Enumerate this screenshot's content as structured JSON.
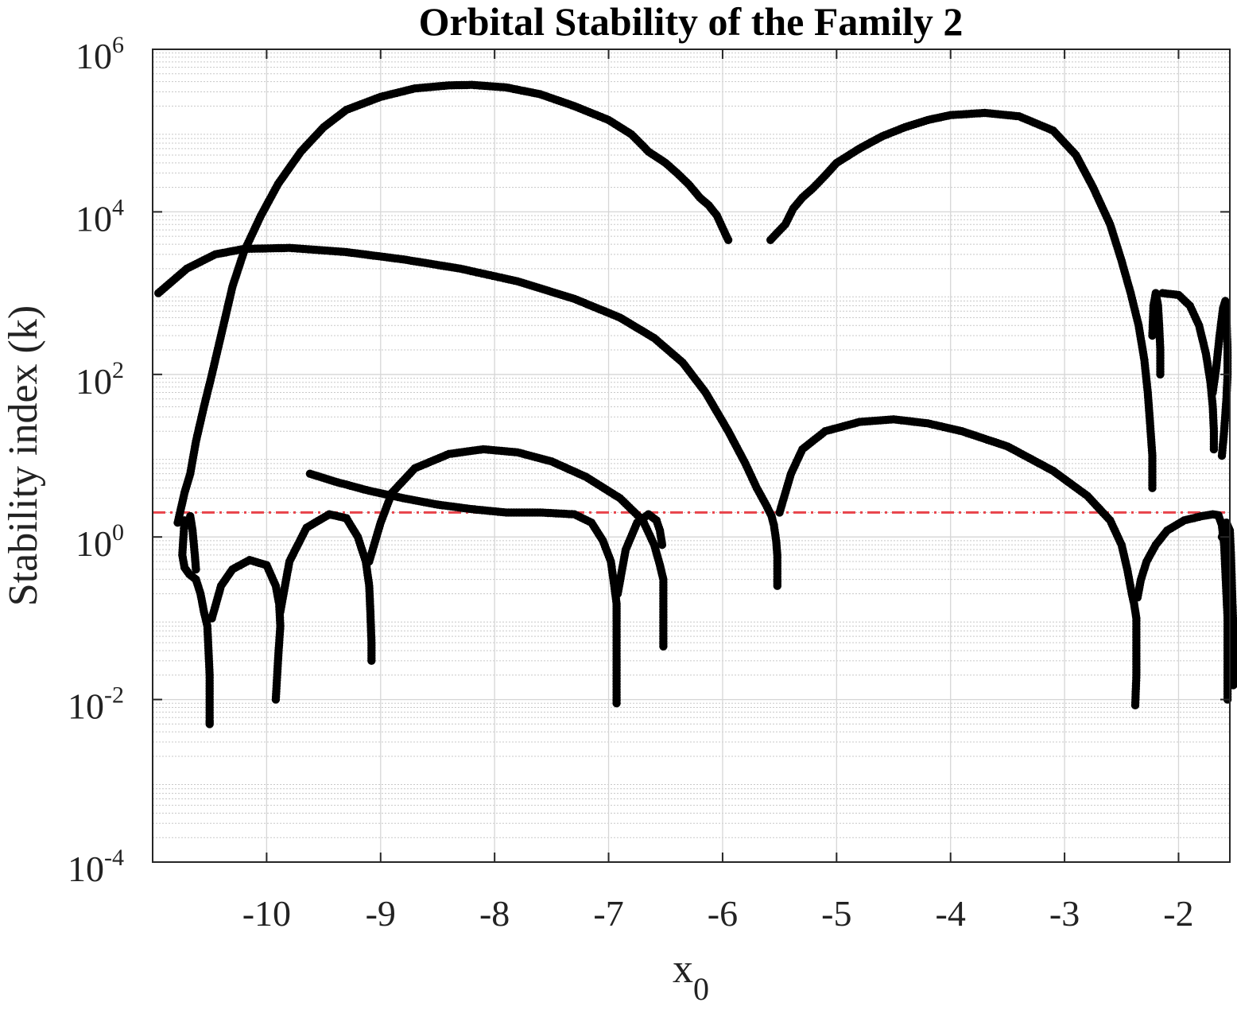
{
  "chart_data": {
    "type": "scatter",
    "title": "Orbital Stability of the Family 2",
    "xlabel": {
      "main": "x",
      "sub": "0"
    },
    "ylabel": "Stability index (k)",
    "xlim": [
      -11.0,
      -1.55
    ],
    "ylim": [
      0.0001,
      1000000
    ],
    "yscale": "log",
    "xticks": [
      -10,
      -9,
      -8,
      -7,
      -6,
      -5,
      -4,
      -3,
      -2
    ],
    "yticks": [
      {
        "value": 0.0001,
        "base": "10",
        "exp": "-4"
      },
      {
        "value": 0.01,
        "base": "10",
        "exp": "-2"
      },
      {
        "value": 1,
        "base": "10",
        "exp": "0"
      },
      {
        "value": 100,
        "base": "10",
        "exp": "2"
      },
      {
        "value": 10000,
        "base": "10",
        "exp": "4"
      },
      {
        "value": 1000000,
        "base": "10",
        "exp": "6"
      }
    ],
    "grid": true,
    "minor_grid": true,
    "marker_color": "#000000",
    "reference_line": {
      "y": 2,
      "color": "#e8434a",
      "style": "dash-dot"
    },
    "series": [
      {
        "points": [
          [
            -10.95,
            1000
          ],
          [
            -10.7,
            2000
          ],
          [
            -10.45,
            3000
          ],
          [
            -10.2,
            3500
          ],
          [
            -9.8,
            3600
          ],
          [
            -9.3,
            3200
          ],
          [
            -8.8,
            2600
          ],
          [
            -8.3,
            2000
          ],
          [
            -7.8,
            1400
          ],
          [
            -7.3,
            850
          ],
          [
            -6.9,
            500
          ],
          [
            -6.6,
            280
          ],
          [
            -6.35,
            140
          ],
          [
            -6.15,
            60
          ],
          [
            -5.95,
            20
          ],
          [
            -5.8,
            8
          ],
          [
            -5.7,
            4
          ],
          [
            -5.62,
            2.5
          ],
          [
            -5.57,
            1.8
          ],
          [
            -5.55,
            1.4
          ],
          [
            -5.53,
            0.9
          ],
          [
            -5.52,
            0.6
          ],
          [
            -5.52,
            0.3
          ],
          [
            -5.52,
            0.25
          ]
        ]
      },
      {
        "points": [
          [
            -10.78,
            1.5
          ],
          [
            -10.72,
            3.5
          ],
          [
            -10.67,
            6
          ],
          [
            -10.62,
            15
          ],
          [
            -10.55,
            40
          ],
          [
            -10.48,
            100
          ],
          [
            -10.4,
            300
          ],
          [
            -10.3,
            1200
          ],
          [
            -10.2,
            3200
          ],
          [
            -10.05,
            9000
          ],
          [
            -9.9,
            22000
          ],
          [
            -9.7,
            55000
          ],
          [
            -9.5,
            110000
          ],
          [
            -9.3,
            180000
          ],
          [
            -9.0,
            260000
          ],
          [
            -8.7,
            330000
          ],
          [
            -8.4,
            360000
          ],
          [
            -8.2,
            365000
          ],
          [
            -7.9,
            340000
          ],
          [
            -7.6,
            280000
          ],
          [
            -7.3,
            200000
          ],
          [
            -7.0,
            135000
          ],
          [
            -6.8,
            90000
          ],
          [
            -6.7,
            65000
          ],
          [
            -6.65,
            55000
          ],
          [
            -6.5,
            40000
          ],
          [
            -6.4,
            30000
          ],
          [
            -6.3,
            22000
          ],
          [
            -6.2,
            15000
          ],
          [
            -6.12,
            12000
          ],
          [
            -6.05,
            9000
          ],
          [
            -5.98,
            5500
          ],
          [
            -5.95,
            4500
          ]
        ]
      },
      {
        "points": [
          [
            -5.58,
            4500
          ],
          [
            -5.55,
            5000
          ],
          [
            -5.45,
            7000
          ],
          [
            -5.38,
            11000
          ],
          [
            -5.3,
            15000
          ],
          [
            -5.2,
            20000
          ],
          [
            -5.1,
            28000
          ],
          [
            -5.0,
            40000
          ],
          [
            -4.8,
            60000
          ],
          [
            -4.6,
            85000
          ],
          [
            -4.4,
            110000
          ],
          [
            -4.2,
            135000
          ],
          [
            -4.0,
            155000
          ],
          [
            -3.7,
            165000
          ],
          [
            -3.4,
            150000
          ],
          [
            -3.1,
            100000
          ],
          [
            -2.9,
            50000
          ],
          [
            -2.75,
            20000
          ],
          [
            -2.6,
            7000
          ],
          [
            -2.5,
            2500
          ],
          [
            -2.42,
            1000
          ],
          [
            -2.35,
            400
          ],
          [
            -2.3,
            150
          ],
          [
            -2.27,
            60
          ],
          [
            -2.25,
            25
          ],
          [
            -2.23,
            10
          ],
          [
            -2.23,
            4
          ]
        ]
      },
      {
        "points": [
          [
            -2.23,
            300
          ],
          [
            -2.22,
            700
          ],
          [
            -2.2,
            1000
          ],
          [
            -2.18,
            700
          ],
          [
            -2.17,
            400
          ],
          [
            -2.16,
            200
          ],
          [
            -2.16,
            100
          ]
        ]
      },
      {
        "points": [
          [
            -2.14,
            1000
          ],
          [
            -2.0,
            950
          ],
          [
            -1.9,
            700
          ],
          [
            -1.82,
            400
          ],
          [
            -1.76,
            180
          ],
          [
            -1.72,
            80
          ],
          [
            -1.7,
            40
          ],
          [
            -1.69,
            20
          ],
          [
            -1.69,
            12
          ]
        ]
      },
      {
        "points": [
          [
            -1.7,
            60
          ],
          [
            -1.67,
            120
          ],
          [
            -1.64,
            300
          ],
          [
            -1.61,
            650
          ],
          [
            -1.59,
            800
          ],
          [
            -1.58,
            500
          ],
          [
            -1.57,
            200
          ],
          [
            -1.57,
            100
          ],
          [
            -1.58,
            50
          ],
          [
            -1.6,
            20
          ],
          [
            -1.62,
            10
          ]
        ]
      },
      {
        "points": [
          [
            -5.5,
            2
          ],
          [
            -5.4,
            6
          ],
          [
            -5.3,
            12
          ],
          [
            -5.1,
            20
          ],
          [
            -4.8,
            26
          ],
          [
            -4.5,
            28
          ],
          [
            -4.2,
            25
          ],
          [
            -3.9,
            20
          ],
          [
            -3.5,
            13
          ],
          [
            -3.1,
            6.5
          ],
          [
            -2.8,
            3.2
          ],
          [
            -2.6,
            1.6
          ],
          [
            -2.5,
            0.8
          ],
          [
            -2.45,
            0.4
          ],
          [
            -2.41,
            0.2
          ],
          [
            -2.39,
            0.15
          ],
          [
            -2.37,
            0.1
          ],
          [
            -2.37,
            0.05
          ],
          [
            -2.37,
            0.02
          ],
          [
            -2.38,
            0.0085
          ]
        ]
      },
      {
        "points": [
          [
            -2.36,
            0.18
          ],
          [
            -2.33,
            0.3
          ],
          [
            -2.28,
            0.5
          ],
          [
            -2.2,
            0.8
          ],
          [
            -2.1,
            1.2
          ],
          [
            -1.95,
            1.6
          ],
          [
            -1.8,
            1.8
          ],
          [
            -1.7,
            1.9
          ],
          [
            -1.65,
            1.85
          ],
          [
            -1.62,
            1.4
          ],
          [
            -1.6,
            0.8
          ],
          [
            -1.59,
            0.4
          ],
          [
            -1.58,
            0.2
          ],
          [
            -1.57,
            0.1
          ],
          [
            -1.57,
            0.04
          ],
          [
            -1.57,
            0.01
          ]
        ]
      },
      {
        "points": [
          [
            -1.62,
            1
          ],
          [
            -1.58,
            1.5
          ],
          [
            -1.55,
            1.2
          ],
          [
            -1.54,
            0.6
          ],
          [
            -1.53,
            0.2
          ],
          [
            -1.52,
            0.08
          ],
          [
            -1.52,
            0.015
          ]
        ]
      },
      {
        "points": [
          [
            -9.62,
            6
          ],
          [
            -9.4,
            4.8
          ],
          [
            -9.1,
            3.7
          ],
          [
            -8.8,
            3
          ],
          [
            -8.5,
            2.5
          ],
          [
            -8.2,
            2.2
          ],
          [
            -7.9,
            2
          ],
          [
            -7.6,
            2
          ],
          [
            -7.3,
            1.9
          ],
          [
            -7.15,
            1.5
          ],
          [
            -7.05,
            0.9
          ],
          [
            -6.98,
            0.5
          ],
          [
            -6.95,
            0.25
          ],
          [
            -6.93,
            0.15
          ],
          [
            -6.93,
            0.1
          ],
          [
            -6.93,
            0.05
          ],
          [
            -6.93,
            0.009
          ]
        ]
      },
      {
        "points": [
          [
            -9.1,
            0.5
          ],
          [
            -9.0,
            1.5
          ],
          [
            -8.9,
            3.5
          ],
          [
            -8.7,
            7
          ],
          [
            -8.4,
            10.5
          ],
          [
            -8.1,
            12
          ],
          [
            -7.8,
            11
          ],
          [
            -7.5,
            8.5
          ],
          [
            -7.2,
            5.5
          ],
          [
            -6.9,
            3
          ],
          [
            -6.7,
            1.6
          ],
          [
            -6.6,
            0.8
          ],
          [
            -6.55,
            0.45
          ],
          [
            -6.52,
            0.3
          ],
          [
            -6.52,
            0.15
          ],
          [
            -6.52,
            0.06
          ],
          [
            -6.52,
            0.045
          ]
        ]
      },
      {
        "points": [
          [
            -10.72,
            1.6
          ],
          [
            -10.73,
            1.0
          ],
          [
            -10.74,
            0.6
          ],
          [
            -10.72,
            0.42
          ],
          [
            -10.68,
            0.35
          ],
          [
            -10.62,
            0.3
          ],
          [
            -10.58,
            0.2
          ],
          [
            -10.55,
            0.12
          ],
          [
            -10.52,
            0.08
          ],
          [
            -10.51,
            0.04
          ],
          [
            -10.5,
            0.02
          ],
          [
            -10.5,
            0.01
          ],
          [
            -10.5,
            0.0055
          ],
          [
            -10.5,
            0.005
          ]
        ]
      },
      {
        "points": [
          [
            -10.67,
            1.8
          ],
          [
            -10.65,
            1.2
          ],
          [
            -10.63,
            0.6
          ],
          [
            -10.62,
            0.4
          ]
        ]
      },
      {
        "points": [
          [
            -10.48,
            0.1
          ],
          [
            -10.4,
            0.25
          ],
          [
            -10.3,
            0.4
          ],
          [
            -10.15,
            0.52
          ],
          [
            -10.0,
            0.45
          ],
          [
            -9.92,
            0.25
          ],
          [
            -9.89,
            0.15
          ],
          [
            -9.88,
            0.08
          ],
          [
            -9.89,
            0.05
          ],
          [
            -9.9,
            0.03
          ],
          [
            -9.92,
            0.01
          ]
        ]
      },
      {
        "points": [
          [
            -9.88,
            0.12
          ],
          [
            -9.8,
            0.5
          ],
          [
            -9.65,
            1.3
          ],
          [
            -9.45,
            1.9
          ],
          [
            -9.3,
            1.7
          ],
          [
            -9.2,
            1.0
          ],
          [
            -9.13,
            0.5
          ],
          [
            -9.1,
            0.25
          ],
          [
            -9.09,
            0.12
          ],
          [
            -9.08,
            0.05
          ],
          [
            -9.08,
            0.03
          ]
        ]
      },
      {
        "points": [
          [
            -6.92,
            0.2
          ],
          [
            -6.85,
            0.7
          ],
          [
            -6.75,
            1.5
          ],
          [
            -6.65,
            1.9
          ],
          [
            -6.58,
            1.6
          ],
          [
            -6.55,
            1.2
          ],
          [
            -6.53,
            0.8
          ]
        ]
      }
    ]
  }
}
